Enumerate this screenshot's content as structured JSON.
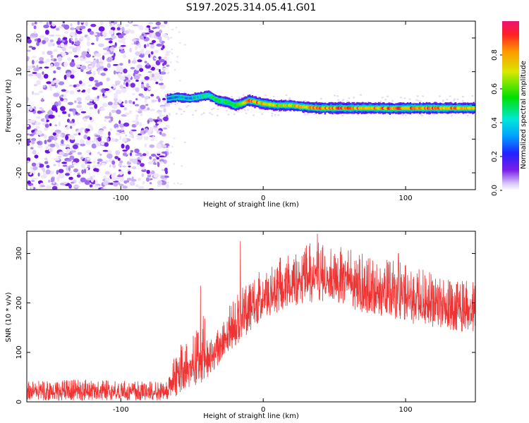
{
  "title": "S197.2025.314.05.41.G01",
  "chart_data": [
    {
      "type": "heatmap",
      "name": "spectrogram",
      "xlabel": "Height of straight line (km)",
      "ylabel": "Frequency (Hz)",
      "xlim": [
        -166,
        149
      ],
      "ylim": [
        -25,
        25
      ],
      "xticks": [
        -100,
        0,
        100
      ],
      "yticks": [
        20,
        10,
        0,
        -10,
        -20
      ],
      "colorbar": {
        "label": "Normalized spectral amplitude",
        "range": [
          0,
          1
        ],
        "ticks": [
          0.0,
          0.2,
          0.4,
          0.6,
          0.8
        ],
        "tick_labels": [
          "0.0",
          "0.2",
          "0.4",
          "0.6",
          "0.8"
        ]
      },
      "noise_region_x": [
        -166,
        -67
      ],
      "signal_track": {
        "x": [
          -67,
          -60,
          -52,
          -45,
          -38,
          -32,
          -25,
          -20,
          -15,
          -10,
          -5,
          0,
          10,
          20,
          30,
          40,
          50,
          60,
          70,
          80,
          90,
          100,
          110,
          120,
          130,
          140,
          149
        ],
        "freq": [
          2.0,
          2.5,
          2.0,
          2.5,
          3.0,
          1.5,
          1.0,
          0.0,
          0.5,
          1.5,
          1.0,
          0.5,
          0.0,
          0.0,
          -0.5,
          -0.8,
          -0.8,
          -0.8,
          -0.8,
          -0.8,
          -0.9,
          -0.8,
          -0.8,
          -0.8,
          -0.8,
          -0.8,
          -0.8
        ],
        "amplitude": [
          0.3,
          0.35,
          0.35,
          0.4,
          0.5,
          0.55,
          0.6,
          0.65,
          0.7,
          0.9,
          0.95,
          0.8,
          0.75,
          0.8,
          0.85,
          0.9,
          0.95,
          0.95,
          0.95,
          0.9,
          0.95,
          0.95,
          0.95,
          0.95,
          0.9,
          0.85,
          0.8
        ]
      }
    },
    {
      "type": "line",
      "name": "snr",
      "xlabel": "Height of straight line (km)",
      "ylabel": "SNR (10 * v/v)",
      "xlim": [
        -166,
        149
      ],
      "ylim": [
        0,
        345
      ],
      "xticks": [
        -100,
        0,
        100
      ],
      "yticks": [
        0,
        100,
        200,
        300
      ],
      "color": "#ee3333",
      "envelope": {
        "x": [
          -166,
          -140,
          -110,
          -80,
          -67,
          -62,
          -55,
          -48,
          -42,
          -35,
          -28,
          -20,
          -10,
          0,
          10,
          20,
          30,
          40,
          50,
          60,
          70,
          80,
          90,
          100,
          110,
          120,
          130,
          140,
          149
        ],
        "upper": [
          42,
          45,
          45,
          42,
          40,
          100,
          130,
          140,
          180,
          150,
          170,
          220,
          250,
          270,
          290,
          300,
          320,
          330,
          320,
          315,
          300,
          290,
          290,
          280,
          270,
          260,
          250,
          250,
          245
        ],
        "lower": [
          3,
          3,
          3,
          3,
          3,
          10,
          20,
          30,
          40,
          60,
          90,
          110,
          140,
          170,
          180,
          190,
          200,
          200,
          200,
          190,
          180,
          175,
          170,
          160,
          155,
          150,
          145,
          140,
          130
        ]
      },
      "spikes": [
        {
          "x": -57,
          "y": 110
        },
        {
          "x": -44,
          "y": 235
        },
        {
          "x": -16,
          "y": 325
        },
        {
          "x": 38,
          "y": 340
        },
        {
          "x": 95,
          "y": 300
        }
      ]
    }
  ]
}
